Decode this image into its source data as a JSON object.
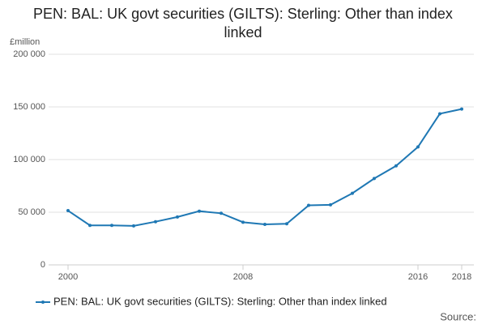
{
  "chart_data": {
    "type": "line",
    "title": "PEN: BAL: UK govt securities (GILTS): Sterling: Other than index linked",
    "y_axis_label": "£million",
    "source": "Source:",
    "x": [
      2000,
      2001,
      2002,
      2003,
      2004,
      2005,
      2006,
      2007,
      2008,
      2009,
      2010,
      2011,
      2012,
      2013,
      2014,
      2015,
      2016,
      2017,
      2018
    ],
    "series": [
      {
        "name": "PEN: BAL: UK govt securities (GILTS): Sterling: Other than index linked",
        "color": "#1f78b4",
        "values": [
          51500,
          37500,
          37500,
          37000,
          41000,
          45500,
          51000,
          49000,
          40500,
          38500,
          39000,
          56500,
          57000,
          68000,
          82000,
          94000,
          112000,
          143500,
          148000
        ]
      }
    ],
    "xlim": [
      2000,
      2018
    ],
    "xticks": [
      2000,
      2008,
      2016,
      2018
    ],
    "ylim": [
      0,
      200000
    ],
    "yticks": [
      0,
      {
        "value": 50000,
        "label": "50 000"
      },
      {
        "value": 100000,
        "label": "100 000"
      },
      {
        "value": 150000,
        "label": "150 000"
      },
      {
        "value": 200000,
        "label": "200 000"
      }
    ],
    "grid": true
  }
}
